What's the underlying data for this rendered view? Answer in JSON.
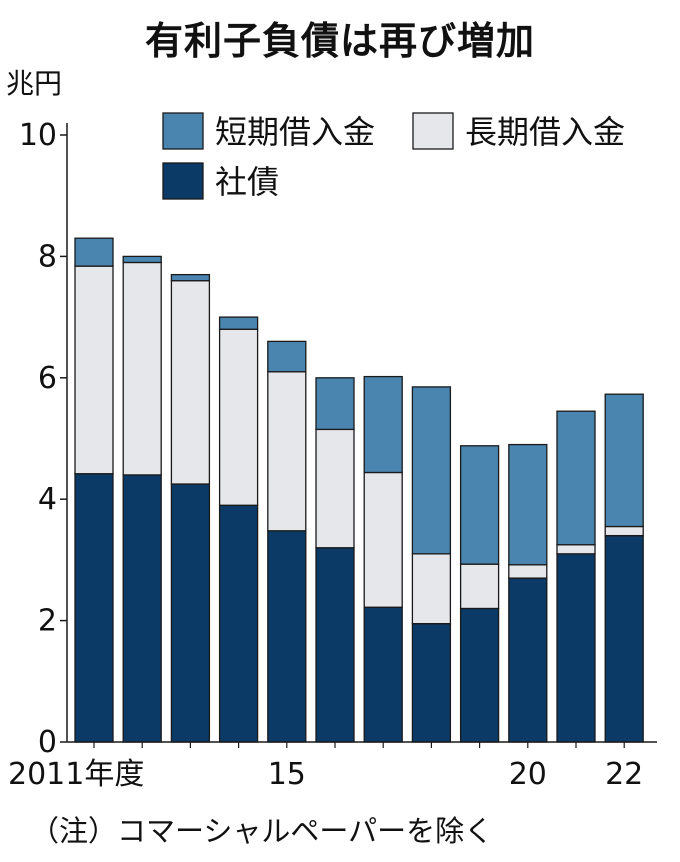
{
  "title": "有利子負債は再び増加",
  "unit": "兆円",
  "note": "（注）コマーシャルペーパーを除く",
  "chart_data": {
    "type": "bar",
    "stacked": true,
    "categories": [
      "2011",
      "2012",
      "2013",
      "2014",
      "2015",
      "2016",
      "2017",
      "2018",
      "2019",
      "2020",
      "2021",
      "2022"
    ],
    "x_tick_labels": [
      {
        "index": 0,
        "label": "2011年度"
      },
      {
        "index": 4,
        "label": "15"
      },
      {
        "index": 9,
        "label": "20"
      },
      {
        "index": 11,
        "label": "22"
      }
    ],
    "series": [
      {
        "name": "社債",
        "color": "#0b3a66",
        "values": [
          4.42,
          4.4,
          4.25,
          3.9,
          3.48,
          3.2,
          2.22,
          1.95,
          2.2,
          2.7,
          3.1,
          3.4
        ]
      },
      {
        "name": "長期借入金",
        "color": "#e6e7eb",
        "values": [
          3.42,
          3.5,
          3.35,
          2.9,
          2.62,
          1.95,
          2.22,
          1.15,
          0.73,
          0.22,
          0.15,
          0.15
        ]
      },
      {
        "name": "短期借入金",
        "color": "#4a85b0",
        "values": [
          0.46,
          0.1,
          0.1,
          0.2,
          0.5,
          0.85,
          1.58,
          2.75,
          1.95,
          1.98,
          2.2,
          2.18
        ]
      }
    ],
    "legend_order": [
      "短期借入金",
      "長期借入金",
      "社債"
    ],
    "ylim": [
      0,
      10
    ],
    "yticks": [
      0,
      2,
      4,
      6,
      8,
      10
    ],
    "grid": false,
    "legend_position": "top-right"
  }
}
